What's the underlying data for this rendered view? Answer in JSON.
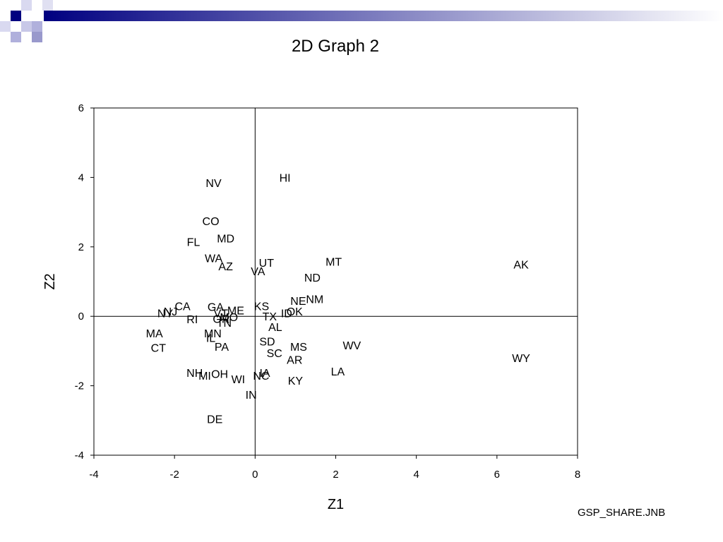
{
  "slide": {
    "title": "2D Graph 2",
    "footer": "GSP_SHARE.JNB"
  },
  "chart_data": {
    "type": "scatter",
    "title": "2D Graph 2",
    "xlabel": "Z1",
    "ylabel": "Z2",
    "xlim": [
      -4,
      8
    ],
    "ylim": [
      -4,
      6
    ],
    "xticks": [
      -4,
      -2,
      0,
      2,
      4,
      6,
      8
    ],
    "yticks": [
      -4,
      -2,
      0,
      2,
      4,
      6
    ],
    "reference_lines": {
      "x": 0,
      "y": 0
    },
    "grid": false,
    "legend": "none",
    "points": [
      {
        "label": "HI",
        "x": 0.74,
        "y": 4.0
      },
      {
        "label": "NV",
        "x": -1.03,
        "y": 3.85
      },
      {
        "label": "CO",
        "x": -1.1,
        "y": 2.75
      },
      {
        "label": "MD",
        "x": -0.73,
        "y": 2.25
      },
      {
        "label": "FL",
        "x": -1.53,
        "y": 2.15
      },
      {
        "label": "WA",
        "x": -1.03,
        "y": 1.68
      },
      {
        "label": "AZ",
        "x": -0.73,
        "y": 1.45
      },
      {
        "label": "UT",
        "x": 0.28,
        "y": 1.55
      },
      {
        "label": "VA",
        "x": 0.07,
        "y": 1.3
      },
      {
        "label": "MT",
        "x": 1.95,
        "y": 1.58
      },
      {
        "label": "AK",
        "x": 6.6,
        "y": 1.5
      },
      {
        "label": "ND",
        "x": 1.42,
        "y": 1.12
      },
      {
        "label": "NM",
        "x": 1.48,
        "y": 0.5
      },
      {
        "label": "NE",
        "x": 1.07,
        "y": 0.45
      },
      {
        "label": "CA",
        "x": -1.8,
        "y": 0.3
      },
      {
        "label": "GA",
        "x": -0.98,
        "y": 0.28
      },
      {
        "label": "KS",
        "x": 0.16,
        "y": 0.3
      },
      {
        "label": "NJ",
        "x": -2.1,
        "y": 0.15
      },
      {
        "label": "NY",
        "x": -2.23,
        "y": 0.1
      },
      {
        "label": "VT",
        "x": -0.85,
        "y": 0.1
      },
      {
        "label": "ME",
        "x": -0.48,
        "y": 0.18
      },
      {
        "label": "OK",
        "x": 0.98,
        "y": 0.15
      },
      {
        "label": "ID",
        "x": 0.78,
        "y": 0.1
      },
      {
        "label": "TX",
        "x": 0.36,
        "y": 0.0
      },
      {
        "label": "RI",
        "x": -1.56,
        "y": -0.08
      },
      {
        "label": "OR",
        "x": -0.84,
        "y": -0.07
      },
      {
        "label": "MO",
        "x": -0.65,
        "y": -0.02
      },
      {
        "label": "TN",
        "x": -0.77,
        "y": -0.18
      },
      {
        "label": "AL",
        "x": 0.5,
        "y": -0.3
      },
      {
        "label": "MA",
        "x": -2.5,
        "y": -0.48
      },
      {
        "label": "MN",
        "x": -1.05,
        "y": -0.48
      },
      {
        "label": "IL",
        "x": -1.1,
        "y": -0.62
      },
      {
        "label": "SD",
        "x": 0.3,
        "y": -0.72
      },
      {
        "label": "WV",
        "x": 2.4,
        "y": -0.83
      },
      {
        "label": "PA",
        "x": -0.83,
        "y": -0.87
      },
      {
        "label": "MS",
        "x": 1.08,
        "y": -0.87
      },
      {
        "label": "CT",
        "x": -2.4,
        "y": -0.9
      },
      {
        "label": "SC",
        "x": 0.48,
        "y": -1.05
      },
      {
        "label": "AR",
        "x": 0.98,
        "y": -1.25
      },
      {
        "label": "WY",
        "x": 6.6,
        "y": -1.2
      },
      {
        "label": "LA",
        "x": 2.05,
        "y": -1.58
      },
      {
        "label": "NH",
        "x": -1.5,
        "y": -1.62
      },
      {
        "label": "OH",
        "x": -0.88,
        "y": -1.65
      },
      {
        "label": "MI",
        "x": -1.25,
        "y": -1.7
      },
      {
        "label": "IA",
        "x": 0.24,
        "y": -1.62
      },
      {
        "label": "NC",
        "x": 0.15,
        "y": -1.7
      },
      {
        "label": "WI",
        "x": -0.42,
        "y": -1.8
      },
      {
        "label": "KY",
        "x": 1.0,
        "y": -1.85
      },
      {
        "label": "IN",
        "x": -0.1,
        "y": -2.25
      },
      {
        "label": "DE",
        "x": -1.0,
        "y": -2.95
      }
    ]
  }
}
